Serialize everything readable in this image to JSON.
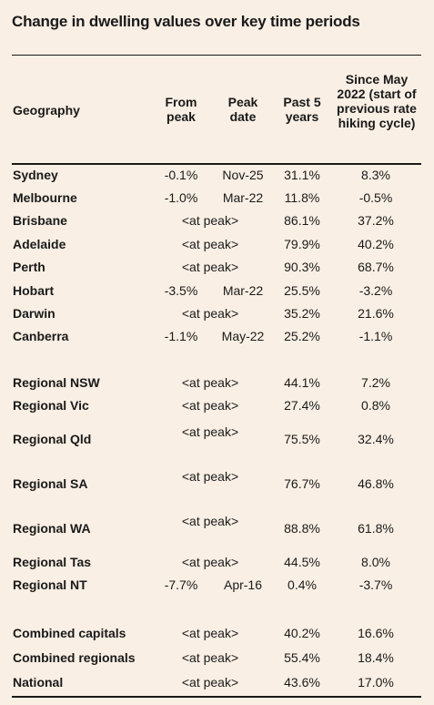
{
  "title": "Change in dwelling values over key time periods",
  "headers": {
    "geography": "Geography",
    "from_peak": "From peak",
    "peak_date": "Peak date",
    "past5": "Past 5 years",
    "since": "Since May 2022 (start of previous rate hiking cycle)"
  },
  "rows": [
    {
      "name": "Sydney",
      "from_peak": "-0.1%",
      "peak_date": "Nov-25",
      "at_peak": "",
      "past5": "31.1%",
      "since": "8.3%"
    },
    {
      "name": "Melbourne",
      "from_peak": "-1.0%",
      "peak_date": "Mar-22",
      "at_peak": "",
      "past5": "11.8%",
      "since": "-0.5%"
    },
    {
      "name": "Brisbane",
      "from_peak": "",
      "peak_date": "",
      "at_peak": "<at peak>",
      "past5": "86.1%",
      "since": "37.2%"
    },
    {
      "name": "Adelaide",
      "from_peak": "",
      "peak_date": "",
      "at_peak": "<at peak>",
      "past5": "79.9%",
      "since": "40.2%"
    },
    {
      "name": "Perth",
      "from_peak": "",
      "peak_date": "",
      "at_peak": "<at peak>",
      "past5": "90.3%",
      "since": "68.7%"
    },
    {
      "name": "Hobart",
      "from_peak": "-3.5%",
      "peak_date": "Mar-22",
      "at_peak": "",
      "past5": "25.5%",
      "since": "-3.2%"
    },
    {
      "name": "Darwin",
      "from_peak": "",
      "peak_date": "",
      "at_peak": "<at peak>",
      "past5": "35.2%",
      "since": "21.6%"
    },
    {
      "name": "Canberra",
      "from_peak": "-1.1%",
      "peak_date": "May-22",
      "at_peak": "",
      "past5": "25.2%",
      "since": "-1.1%"
    },
    {
      "name": "Regional NSW",
      "from_peak": "",
      "peak_date": "",
      "at_peak": "<at peak>",
      "past5": "44.1%",
      "since": "7.2%"
    },
    {
      "name": "Regional Vic",
      "from_peak": "",
      "peak_date": "",
      "at_peak": "<at peak>",
      "past5": "27.4%",
      "since": "0.8%"
    },
    {
      "name": "Regional Qld",
      "from_peak": "",
      "peak_date": "",
      "at_peak": "<at peak>",
      "past5": "75.5%",
      "since": "32.4%"
    },
    {
      "name": "Regional SA",
      "from_peak": "",
      "peak_date": "",
      "at_peak": "<at peak>",
      "past5": "76.7%",
      "since": "46.8%"
    },
    {
      "name": "Regional WA",
      "from_peak": "",
      "peak_date": "",
      "at_peak": "<at peak>",
      "past5": "88.8%",
      "since": "61.8%"
    },
    {
      "name": "Regional Tas",
      "from_peak": "",
      "peak_date": "",
      "at_peak": "<at peak>",
      "past5": "44.5%",
      "since": "8.0%"
    },
    {
      "name": "Regional NT",
      "from_peak": "-7.7%",
      "peak_date": "Apr-16",
      "at_peak": "",
      "past5": "0.4%",
      "since": "-3.7%"
    },
    {
      "name": "Combined capitals",
      "from_peak": "",
      "peak_date": "",
      "at_peak": "<at peak>",
      "past5": "40.2%",
      "since": "16.6%"
    },
    {
      "name": "Combined regionals",
      "from_peak": "",
      "peak_date": "",
      "at_peak": "<at peak>",
      "past5": "55.4%",
      "since": "18.4%"
    },
    {
      "name": "National",
      "from_peak": "",
      "peak_date": "",
      "at_peak": "<at peak>",
      "past5": "43.6%",
      "since": "17.0%"
    }
  ]
}
